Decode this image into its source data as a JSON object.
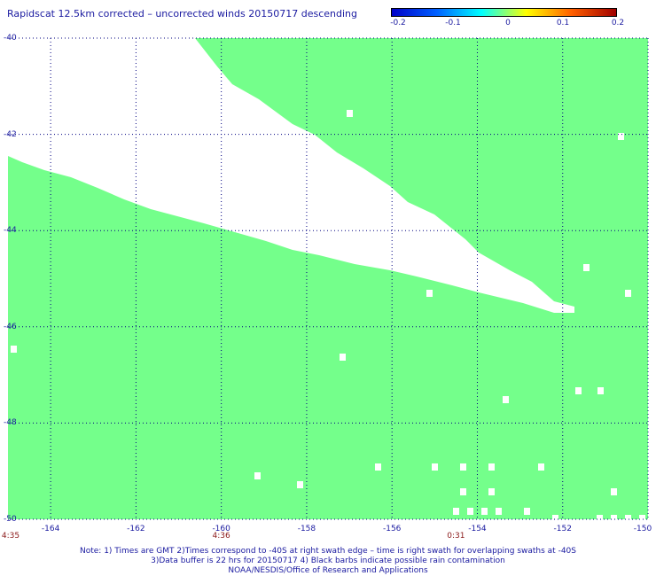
{
  "title": "Rapidscat 12.5km corrected – uncorrected winds 20150717 descending",
  "colorbar": {
    "labels": [
      "-0.2",
      "-0.1",
      "0",
      "0.1",
      "0.2"
    ],
    "gradient": [
      "#0000c8",
      "#0060ff",
      "#00ffff",
      "#ffff00",
      "#ff6000",
      "#a00000"
    ]
  },
  "map": {
    "lon_range": [
      -165,
      -150
    ],
    "lat_range": [
      -50,
      -40
    ],
    "fill_color": "#74ff8b",
    "grid_color": "#000080",
    "x_ticks": [
      "-164",
      "-162",
      "-160",
      "-158",
      "-156",
      "-154",
      "-152",
      "-150"
    ],
    "y_ticks": [
      "-40",
      "-42",
      "-44",
      "-46",
      "-48",
      "-50"
    ],
    "swath_times": [
      {
        "lon": -165,
        "label": "4:35"
      },
      {
        "lon": -160,
        "label": "4:36"
      },
      {
        "lon": -154.5,
        "label": "0:31"
      }
    ]
  },
  "notes": [
    "Note: 1) Times are GMT 2)Times correspond to -40S at right swath edge – time is right swath for overlapping swaths at -40S",
    "3)Data buffer is 22 hrs for 20150717 4) Black barbs indicate possible rain contamination",
    "NOAA/NESDIS/Office of Research and Applications"
  ]
}
